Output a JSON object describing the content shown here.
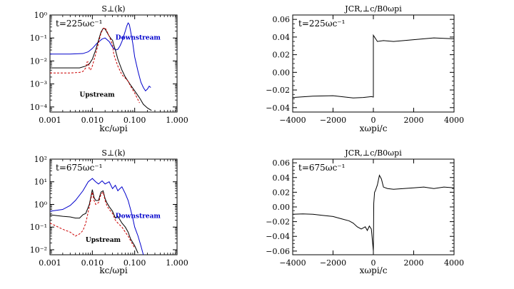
{
  "chart_data": [
    {
      "id": "s-perp-early",
      "type": "line",
      "title": "S⊥(k)",
      "xlabel": "kc/ωpi",
      "ylabel": "",
      "xscale": "log",
      "yscale": "log",
      "xlim": [
        0.001,
        1.0
      ],
      "ylim": [
        6e-05,
        1.0
      ],
      "xticks": [
        0.001,
        0.01,
        0.1,
        1.0
      ],
      "xtick_labels": [
        "0.001",
        "0.010",
        "0.100",
        "1.000"
      ],
      "yticks": [
        0.0001,
        0.001,
        0.01,
        0.1,
        1.0
      ],
      "ytick_labels": [
        "10⁻⁴",
        "10⁻³",
        "10⁻²",
        "10⁻¹",
        "10⁰"
      ],
      "time_label": "t=225ωc⁻¹",
      "annotations": [
        {
          "text": "Downstream",
          "color": "#0000cc",
          "x": 0.12,
          "y": 0.085
        },
        {
          "text": "Upstream",
          "color": "#000000",
          "x": 0.013,
          "y": 0.00028
        }
      ],
      "series": [
        {
          "name": "Downstream",
          "color": "#0000cc",
          "style": "solid",
          "x": [
            0.001,
            0.003,
            0.006,
            0.008,
            0.01,
            0.013,
            0.017,
            0.02,
            0.025,
            0.03,
            0.035,
            0.04,
            0.045,
            0.05,
            0.055,
            0.06,
            0.065,
            0.07,
            0.075,
            0.08,
            0.09,
            0.1,
            0.12,
            0.14,
            0.16,
            0.18,
            0.2,
            0.22,
            0.24
          ],
          "y": [
            0.02,
            0.02,
            0.021,
            0.025,
            0.035,
            0.06,
            0.09,
            0.1,
            0.07,
            0.04,
            0.03,
            0.032,
            0.045,
            0.07,
            0.12,
            0.2,
            0.33,
            0.45,
            0.38,
            0.2,
            0.06,
            0.015,
            0.0035,
            0.0012,
            0.0007,
            0.0005,
            0.0006,
            0.0008,
            0.0007
          ]
        },
        {
          "name": "Black (solid)",
          "color": "#000000",
          "style": "solid",
          "x": [
            0.001,
            0.003,
            0.005,
            0.007,
            0.0085,
            0.01,
            0.012,
            0.014,
            0.016,
            0.018,
            0.02,
            0.022,
            0.025,
            0.028,
            0.03,
            0.032,
            0.035,
            0.04,
            0.05,
            0.06,
            0.07,
            0.08,
            0.1,
            0.13,
            0.16,
            0.2,
            0.25
          ],
          "y": [
            0.005,
            0.005,
            0.005,
            0.006,
            0.0075,
            0.012,
            0.03,
            0.08,
            0.18,
            0.26,
            0.25,
            0.18,
            0.12,
            0.09,
            0.08,
            0.05,
            0.03,
            0.012,
            0.004,
            0.002,
            0.0013,
            0.0009,
            0.0005,
            0.00025,
            0.00013,
            9e-05,
            7e-05
          ]
        },
        {
          "name": "Red (dashed)",
          "color": "#cc0000",
          "style": "dashed",
          "x": [
            0.001,
            0.003,
            0.005,
            0.006,
            0.007,
            0.0075,
            0.008,
            0.0085,
            0.009,
            0.01,
            0.012,
            0.014,
            0.016,
            0.018,
            0.02,
            0.022,
            0.025,
            0.028,
            0.03,
            0.032,
            0.035,
            0.04,
            0.05,
            0.06,
            0.07,
            0.08,
            0.1,
            0.13
          ],
          "y": [
            0.003,
            0.003,
            0.0032,
            0.0035,
            0.005,
            0.009,
            0.009,
            0.0045,
            0.004,
            0.006,
            0.02,
            0.06,
            0.16,
            0.26,
            0.28,
            0.2,
            0.12,
            0.07,
            0.05,
            0.02,
            0.012,
            0.006,
            0.0025,
            0.0018,
            0.0013,
            0.0008,
            0.0004,
            0.00015
          ]
        }
      ]
    },
    {
      "id": "jcr-early",
      "type": "line",
      "title": "JCR,⊥c/B0ωpi",
      "xlabel": "xωpi/c",
      "ylabel": "",
      "xscale": "linear",
      "yscale": "linear",
      "xlim": [
        -4000,
        4000
      ],
      "ylim": [
        -0.045,
        0.065
      ],
      "xticks": [
        -4000,
        -2000,
        0,
        2000,
        4000
      ],
      "xtick_labels": [
        "−4000",
        "−2000",
        "0",
        "2000",
        "4000"
      ],
      "yticks": [
        -0.04,
        -0.02,
        0.0,
        0.02,
        0.04,
        0.06
      ],
      "ytick_labels": [
        "−0.04",
        "−0.02",
        "0.00",
        "0.02",
        "0.04",
        "0.06"
      ],
      "time_label": "t=225ωc⁻¹",
      "annotations": [],
      "series": [
        {
          "name": "JCR",
          "color": "#000000",
          "style": "solid",
          "x": [
            -4000,
            -3000,
            -2000,
            -1000,
            -500,
            -100,
            0,
            0.01,
            200,
            500,
            1000,
            2000,
            3000,
            4000
          ],
          "y": [
            -0.0285,
            -0.027,
            -0.0265,
            -0.029,
            -0.0285,
            -0.0275,
            -0.028,
            0.042,
            0.035,
            0.036,
            0.035,
            0.037,
            0.039,
            0.038
          ]
        }
      ]
    },
    {
      "id": "s-perp-late",
      "type": "line",
      "title": "S⊥(k)",
      "xlabel": "kc/ωpi",
      "ylabel": "",
      "xscale": "log",
      "yscale": "log",
      "xlim": [
        0.001,
        1.0
      ],
      "ylim": [
        0.006,
        100
      ],
      "xticks": [
        0.001,
        0.01,
        0.1,
        1.0
      ],
      "xtick_labels": [
        "0.001",
        "0.010",
        "0.100",
        "1.000"
      ],
      "yticks": [
        0.01,
        0.1,
        1,
        10,
        100
      ],
      "ytick_labels": [
        "10⁻²",
        "10⁻¹",
        "10⁰",
        "10¹",
        "10²"
      ],
      "time_label": "t=675ωc⁻¹",
      "annotations": [
        {
          "text": "Downstream",
          "color": "#0000cc",
          "x": 0.12,
          "y": 0.25
        },
        {
          "text": "Upstream",
          "color": "#000000",
          "x": 0.018,
          "y": 0.022
        }
      ],
      "series": [
        {
          "name": "Downstream",
          "color": "#0000cc",
          "style": "solid",
          "x": [
            0.001,
            0.002,
            0.003,
            0.004,
            0.006,
            0.008,
            0.01,
            0.012,
            0.014,
            0.017,
            0.02,
            0.025,
            0.03,
            0.035,
            0.04,
            0.045,
            0.05,
            0.06,
            0.07,
            0.08,
            0.09,
            0.1,
            0.12,
            0.14,
            0.16
          ],
          "y": [
            0.5,
            0.6,
            0.9,
            1.5,
            4,
            10,
            14,
            10,
            8,
            11,
            8,
            10,
            5,
            7,
            4,
            5,
            6,
            3,
            1.5,
            0.6,
            0.25,
            0.1,
            0.04,
            0.015,
            0.006
          ]
        },
        {
          "name": "Black (solid)",
          "color": "#000000",
          "style": "solid",
          "x": [
            0.001,
            0.002,
            0.003,
            0.004,
            0.005,
            0.006,
            0.007,
            0.0085,
            0.01,
            0.011,
            0.012,
            0.014,
            0.016,
            0.018,
            0.02,
            0.022,
            0.025,
            0.03,
            0.035,
            0.04,
            0.05,
            0.06,
            0.07,
            0.08,
            0.1,
            0.12
          ],
          "y": [
            0.35,
            0.3,
            0.28,
            0.25,
            0.25,
            0.35,
            0.4,
            1.0,
            4.5,
            2.0,
            1.5,
            1.5,
            3.5,
            4.0,
            1.8,
            1.2,
            0.8,
            0.5,
            0.25,
            0.3,
            0.15,
            0.1,
            0.06,
            0.03,
            0.015,
            0.007
          ]
        },
        {
          "name": "Red (dashed)",
          "color": "#cc0000",
          "style": "dashed",
          "x": [
            0.001,
            0.002,
            0.003,
            0.004,
            0.005,
            0.006,
            0.007,
            0.0085,
            0.01,
            0.011,
            0.012,
            0.014,
            0.016,
            0.018,
            0.02,
            0.022,
            0.025,
            0.03,
            0.035,
            0.04,
            0.05,
            0.06,
            0.07,
            0.08,
            0.1
          ],
          "y": [
            0.15,
            0.08,
            0.06,
            0.04,
            0.05,
            0.07,
            0.15,
            0.8,
            3.5,
            1.5,
            1.0,
            1.2,
            2.8,
            3.5,
            1.5,
            0.9,
            0.6,
            0.4,
            0.2,
            0.15,
            0.1,
            0.06,
            0.04,
            0.025,
            0.012
          ]
        }
      ]
    },
    {
      "id": "jcr-late",
      "type": "line",
      "title": "JCR,⊥c/B0ωpi",
      "xlabel": "xωpi/c",
      "ylabel": "",
      "xscale": "linear",
      "yscale": "linear",
      "xlim": [
        -4000,
        4000
      ],
      "ylim": [
        -0.065,
        0.065
      ],
      "xticks": [
        -4000,
        -2000,
        0,
        2000,
        4000
      ],
      "xtick_labels": [
        "−4000",
        "−2000",
        "0",
        "2000",
        "4000"
      ],
      "yticks": [
        -0.06,
        -0.04,
        -0.02,
        0.0,
        0.02,
        0.04,
        0.06
      ],
      "ytick_labels": [
        "−0.06",
        "−0.04",
        "−0.02",
        "0.00",
        "0.02",
        "0.04",
        "0.06"
      ],
      "time_label": "t=675ωc⁻¹",
      "annotations": [],
      "series": [
        {
          "name": "JCR",
          "color": "#000000",
          "style": "solid",
          "x": [
            -4000,
            -3500,
            -3000,
            -2500,
            -2000,
            -1600,
            -1200,
            -1000,
            -800,
            -600,
            -400,
            -300,
            -200,
            -100,
            -50,
            0,
            20,
            60,
            100,
            200,
            300,
            400,
            500,
            700,
            1000,
            1500,
            2000,
            2500,
            3000,
            3500,
            4000
          ],
          "y": [
            -0.01,
            -0.0095,
            -0.01,
            -0.0115,
            -0.013,
            -0.016,
            -0.019,
            -0.022,
            -0.027,
            -0.03,
            -0.027,
            -0.032,
            -0.026,
            -0.03,
            -0.045,
            -0.06,
            0.005,
            0.02,
            0.022,
            0.03,
            0.043,
            0.038,
            0.027,
            0.025,
            0.024,
            0.025,
            0.026,
            0.027,
            0.025,
            0.027,
            0.026
          ]
        }
      ]
    }
  ]
}
